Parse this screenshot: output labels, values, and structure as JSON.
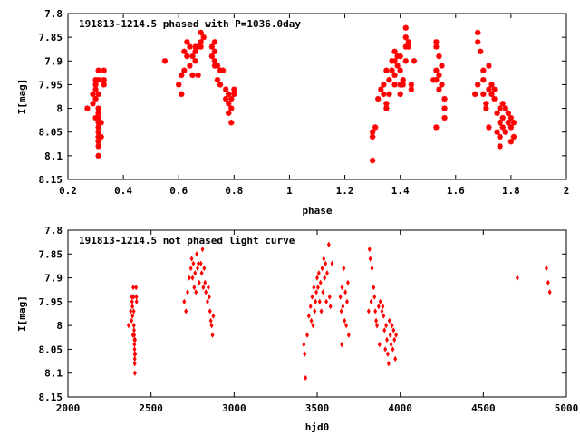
{
  "chart_data": [
    {
      "type": "scatter",
      "title": "191813-1214.5 phased with P=1036.0day",
      "xlabel": "phase",
      "ylabel": "I[mag]",
      "xlim": [
        0.2,
        2.0
      ],
      "ylim": [
        7.8,
        8.15
      ],
      "y_inverted": true,
      "x_ticks": [
        "0.2",
        "0.4",
        "0.6",
        "0.8",
        "1",
        "1.2",
        "1.4",
        "1.6",
        "1.8",
        "2"
      ],
      "y_ticks": [
        "7.8",
        "7.85",
        "7.9",
        "7.95",
        "8",
        "8.05",
        "8.1",
        "8.15"
      ],
      "grid": false,
      "color": "#ff0000",
      "marker": "star",
      "points": [
        [
          0.27,
          8.0
        ],
        [
          0.29,
          7.97
        ],
        [
          0.29,
          7.99
        ],
        [
          0.3,
          7.94
        ],
        [
          0.3,
          7.95
        ],
        [
          0.3,
          7.96
        ],
        [
          0.3,
          7.98
        ],
        [
          0.3,
          8.02
        ],
        [
          0.31,
          7.92
        ],
        [
          0.31,
          7.94
        ],
        [
          0.31,
          7.97
        ],
        [
          0.31,
          8.0
        ],
        [
          0.31,
          8.01
        ],
        [
          0.31,
          8.02
        ],
        [
          0.31,
          8.03
        ],
        [
          0.31,
          8.04
        ],
        [
          0.31,
          8.05
        ],
        [
          0.31,
          8.06
        ],
        [
          0.31,
          8.07
        ],
        [
          0.31,
          8.08
        ],
        [
          0.31,
          8.1
        ],
        [
          0.32,
          8.03
        ],
        [
          0.32,
          8.06
        ],
        [
          0.33,
          7.92
        ],
        [
          0.33,
          7.94
        ],
        [
          0.33,
          7.95
        ],
        [
          0.55,
          7.9
        ],
        [
          0.6,
          7.95
        ],
        [
          0.61,
          7.93
        ],
        [
          0.61,
          7.97
        ],
        [
          0.62,
          7.88
        ],
        [
          0.62,
          7.92
        ],
        [
          0.63,
          7.86
        ],
        [
          0.63,
          7.89
        ],
        [
          0.64,
          7.87
        ],
        [
          0.64,
          7.91
        ],
        [
          0.65,
          7.89
        ],
        [
          0.65,
          7.93
        ],
        [
          0.66,
          7.87
        ],
        [
          0.66,
          7.88
        ],
        [
          0.66,
          7.9
        ],
        [
          0.67,
          7.87
        ],
        [
          0.67,
          7.93
        ],
        [
          0.68,
          7.84
        ],
        [
          0.68,
          7.86
        ],
        [
          0.68,
          7.87
        ],
        [
          0.69,
          7.85
        ],
        [
          0.72,
          7.87
        ],
        [
          0.72,
          7.89
        ],
        [
          0.73,
          7.86
        ],
        [
          0.73,
          7.88
        ],
        [
          0.73,
          7.9
        ],
        [
          0.73,
          7.91
        ],
        [
          0.74,
          7.91
        ],
        [
          0.74,
          7.94
        ],
        [
          0.75,
          7.92
        ],
        [
          0.75,
          7.95
        ],
        [
          0.76,
          7.92
        ],
        [
          0.77,
          7.96
        ],
        [
          0.77,
          7.98
        ],
        [
          0.78,
          7.97
        ],
        [
          0.78,
          7.99
        ],
        [
          0.78,
          8.01
        ],
        [
          0.79,
          8.03
        ],
        [
          0.79,
          7.98
        ],
        [
          0.79,
          8.0
        ],
        [
          0.8,
          7.96
        ],
        [
          0.8,
          7.97
        ],
        [
          1.3,
          8.05
        ],
        [
          1.3,
          8.06
        ],
        [
          1.3,
          8.11
        ],
        [
          1.31,
          8.04
        ],
        [
          1.32,
          7.98
        ],
        [
          1.33,
          7.96
        ],
        [
          1.34,
          7.95
        ],
        [
          1.34,
          7.97
        ],
        [
          1.35,
          7.92
        ],
        [
          1.35,
          7.99
        ],
        [
          1.35,
          8.0
        ],
        [
          1.36,
          7.94
        ],
        [
          1.36,
          7.97
        ],
        [
          1.37,
          7.9
        ],
        [
          1.37,
          7.92
        ],
        [
          1.38,
          7.88
        ],
        [
          1.38,
          7.9
        ],
        [
          1.38,
          7.93
        ],
        [
          1.38,
          7.95
        ],
        [
          1.39,
          7.89
        ],
        [
          1.39,
          7.91
        ],
        [
          1.4,
          7.89
        ],
        [
          1.4,
          7.92
        ],
        [
          1.4,
          7.95
        ],
        [
          1.4,
          7.97
        ],
        [
          1.41,
          7.94
        ],
        [
          1.41,
          7.95
        ],
        [
          1.42,
          7.83
        ],
        [
          1.42,
          7.85
        ],
        [
          1.42,
          7.87
        ],
        [
          1.42,
          7.9
        ],
        [
          1.43,
          7.86
        ],
        [
          1.43,
          7.87
        ],
        [
          1.44,
          7.95
        ],
        [
          1.44,
          7.96
        ],
        [
          1.45,
          7.9
        ],
        [
          1.52,
          7.94
        ],
        [
          1.53,
          7.86
        ],
        [
          1.53,
          7.87
        ],
        [
          1.53,
          7.92
        ],
        [
          1.53,
          7.94
        ],
        [
          1.54,
          7.89
        ],
        [
          1.54,
          7.93
        ],
        [
          1.54,
          7.96
        ],
        [
          1.55,
          7.91
        ],
        [
          1.55,
          7.95
        ],
        [
          1.56,
          7.98
        ],
        [
          1.56,
          8.0
        ],
        [
          1.56,
          8.02
        ],
        [
          1.53,
          8.04
        ],
        [
          1.67,
          7.97
        ],
        [
          1.68,
          7.84
        ],
        [
          1.68,
          7.86
        ],
        [
          1.68,
          7.95
        ],
        [
          1.69,
          7.88
        ],
        [
          1.7,
          7.92
        ],
        [
          1.7,
          7.94
        ],
        [
          1.7,
          7.97
        ],
        [
          1.71,
          7.99
        ],
        [
          1.71,
          8.0
        ],
        [
          1.72,
          7.91
        ],
        [
          1.72,
          7.96
        ],
        [
          1.72,
          8.04
        ],
        [
          1.73,
          7.95
        ],
        [
          1.73,
          7.97
        ],
        [
          1.74,
          7.96
        ],
        [
          1.74,
          7.98
        ],
        [
          1.75,
          8.01
        ],
        [
          1.75,
          8.05
        ],
        [
          1.76,
          8.0
        ],
        [
          1.76,
          8.03
        ],
        [
          1.76,
          8.06
        ],
        [
          1.76,
          8.08
        ],
        [
          1.77,
          7.99
        ],
        [
          1.77,
          8.02
        ],
        [
          1.77,
          8.04
        ],
        [
          1.78,
          8.0
        ],
        [
          1.78,
          8.05
        ],
        [
          1.79,
          8.01
        ],
        [
          1.79,
          8.03
        ],
        [
          1.8,
          8.02
        ],
        [
          1.8,
          8.04
        ],
        [
          1.8,
          8.07
        ],
        [
          1.81,
          8.06
        ],
        [
          1.81,
          8.03
        ]
      ]
    },
    {
      "type": "scatter",
      "title": "191813-1214.5 not phased light curve",
      "xlabel": "hjd0",
      "ylabel": "I[mag]",
      "xlim": [
        2000,
        5000
      ],
      "ylim": [
        7.8,
        8.15
      ],
      "y_inverted": true,
      "x_ticks": [
        "2000",
        "2500",
        "3000",
        "3500",
        "4000",
        "4500",
        "5000"
      ],
      "y_ticks": [
        "7.8",
        "7.85",
        "7.9",
        "7.95",
        "8",
        "8.05",
        "8.1",
        "8.15"
      ],
      "grid": false,
      "color": "#ff0000",
      "marker": "diamond",
      "points": [
        [
          2365,
          8.0
        ],
        [
          2378,
          7.97
        ],
        [
          2383,
          7.99
        ],
        [
          2385,
          7.94
        ],
        [
          2386,
          7.95
        ],
        [
          2388,
          7.96
        ],
        [
          2389,
          7.98
        ],
        [
          2391,
          8.02
        ],
        [
          2393,
          7.92
        ],
        [
          2395,
          7.94
        ],
        [
          2396,
          7.97
        ],
        [
          2397,
          8.0
        ],
        [
          2398,
          8.01
        ],
        [
          2399,
          8.02
        ],
        [
          2400,
          8.03
        ],
        [
          2400,
          8.04
        ],
        [
          2401,
          8.05
        ],
        [
          2401,
          8.06
        ],
        [
          2402,
          8.07
        ],
        [
          2402,
          8.08
        ],
        [
          2403,
          8.1
        ],
        [
          2404,
          8.03
        ],
        [
          2405,
          8.06
        ],
        [
          2410,
          7.92
        ],
        [
          2412,
          7.94
        ],
        [
          2413,
          7.95
        ],
        [
          2700,
          7.95
        ],
        [
          2710,
          7.97
        ],
        [
          2720,
          7.93
        ],
        [
          2730,
          7.9
        ],
        [
          2740,
          7.88
        ],
        [
          2745,
          7.86
        ],
        [
          2750,
          7.9
        ],
        [
          2755,
          7.87
        ],
        [
          2760,
          7.92
        ],
        [
          2765,
          7.89
        ],
        [
          2770,
          7.93
        ],
        [
          2775,
          7.85
        ],
        [
          2780,
          7.88
        ],
        [
          2785,
          7.87
        ],
        [
          2790,
          7.91
        ],
        [
          2800,
          7.87
        ],
        [
          2805,
          7.89
        ],
        [
          2810,
          7.84
        ],
        [
          2815,
          7.92
        ],
        [
          2820,
          7.88
        ],
        [
          2825,
          7.91
        ],
        [
          2830,
          7.93
        ],
        [
          2840,
          7.95
        ],
        [
          2845,
          7.92
        ],
        [
          2850,
          7.94
        ],
        [
          2855,
          7.97
        ],
        [
          2860,
          7.99
        ],
        [
          2865,
          8.0
        ],
        [
          2870,
          8.02
        ],
        [
          2875,
          7.98
        ],
        [
          3420,
          8.04
        ],
        [
          3425,
          8.06
        ],
        [
          3430,
          8.11
        ],
        [
          3440,
          8.02
        ],
        [
          3450,
          7.98
        ],
        [
          3460,
          7.96
        ],
        [
          3465,
          7.99
        ],
        [
          3470,
          7.94
        ],
        [
          3475,
          8.0
        ],
        [
          3480,
          7.92
        ],
        [
          3485,
          7.97
        ],
        [
          3490,
          7.95
        ],
        [
          3495,
          7.93
        ],
        [
          3500,
          7.9
        ],
        [
          3505,
          7.92
        ],
        [
          3510,
          7.89
        ],
        [
          3515,
          7.95
        ],
        [
          3520,
          7.91
        ],
        [
          3525,
          7.97
        ],
        [
          3530,
          7.88
        ],
        [
          3535,
          7.93
        ],
        [
          3540,
          7.86
        ],
        [
          3545,
          7.9
        ],
        [
          3550,
          7.87
        ],
        [
          3555,
          7.95
        ],
        [
          3560,
          7.89
        ],
        [
          3570,
          7.83
        ],
        [
          3575,
          7.94
        ],
        [
          3580,
          7.96
        ],
        [
          3590,
          7.87
        ],
        [
          3640,
          7.94
        ],
        [
          3645,
          7.97
        ],
        [
          3650,
          7.92
        ],
        [
          3655,
          7.96
        ],
        [
          3660,
          7.88
        ],
        [
          3665,
          7.99
        ],
        [
          3670,
          7.93
        ],
        [
          3675,
          8.0
        ],
        [
          3680,
          7.95
        ],
        [
          3685,
          7.91
        ],
        [
          3690,
          8.02
        ],
        [
          3648,
          8.04
        ],
        [
          3810,
          7.97
        ],
        [
          3815,
          7.84
        ],
        [
          3820,
          7.86
        ],
        [
          3825,
          7.95
        ],
        [
          3830,
          7.88
        ],
        [
          3840,
          7.92
        ],
        [
          3845,
          7.94
        ],
        [
          3850,
          7.97
        ],
        [
          3855,
          7.99
        ],
        [
          3860,
          8.0
        ],
        [
          3870,
          7.96
        ],
        [
          3875,
          8.04
        ],
        [
          3880,
          7.95
        ],
        [
          3890,
          7.97
        ],
        [
          3895,
          7.96
        ],
        [
          3900,
          7.98
        ],
        [
          3905,
          8.01
        ],
        [
          3910,
          8.05
        ],
        [
          3915,
          8.0
        ],
        [
          3920,
          8.03
        ],
        [
          3925,
          8.06
        ],
        [
          3930,
          8.08
        ],
        [
          3935,
          7.99
        ],
        [
          3940,
          8.02
        ],
        [
          3945,
          8.04
        ],
        [
          3950,
          8.0
        ],
        [
          3955,
          8.05
        ],
        [
          3960,
          8.01
        ],
        [
          3965,
          8.03
        ],
        [
          3970,
          8.07
        ],
        [
          3975,
          8.02
        ],
        [
          4705,
          7.9
        ],
        [
          4880,
          7.88
        ],
        [
          4890,
          7.91
        ],
        [
          4900,
          7.93
        ]
      ]
    }
  ]
}
